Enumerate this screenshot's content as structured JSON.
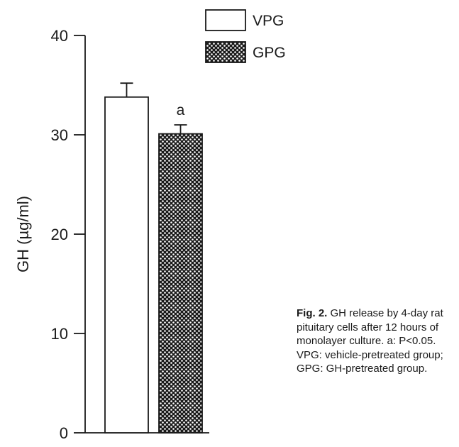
{
  "chart_data": {
    "type": "bar",
    "categories": [
      "VPG",
      "GPG"
    ],
    "values": [
      33.8,
      30.1
    ],
    "errors": [
      1.4,
      0.9
    ],
    "ylabel": "GH (µg/ml)",
    "xlabel": "",
    "ylim": [
      0,
      40
    ],
    "yticks": [
      0,
      10,
      20,
      30,
      40
    ],
    "legend": [
      "VPG",
      "GPG"
    ],
    "legend_position": "top",
    "annotations": [
      {
        "category": "GPG",
        "text": "a"
      }
    ],
    "bar_fills": [
      "#ffffff",
      "dotted"
    ],
    "grid": false
  },
  "caption": {
    "label": "Fig. 2.",
    "text": "GH release by 4-day rat pituitary cells after 12 hours of monolayer culture. a: P<0.05. VPG: vehicle-pretreated group; GPG: GH-pretreated group."
  }
}
